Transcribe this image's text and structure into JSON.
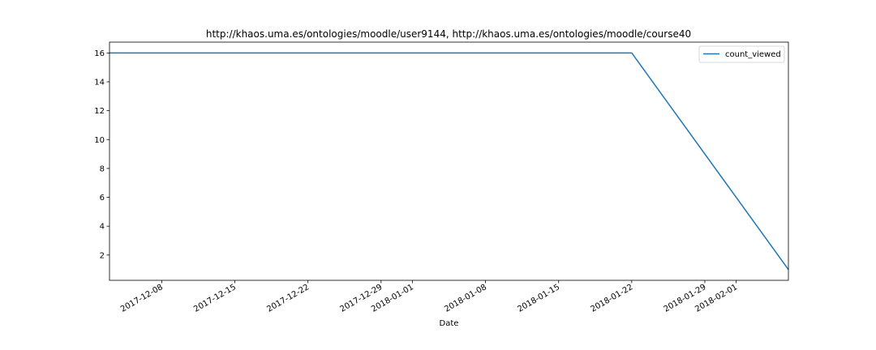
{
  "chart_data": {
    "type": "line",
    "title": "http://khaos.uma.es/ontologies/moodle/user9144, http://khaos.uma.es/ontologies/moodle/course40",
    "xlabel": "Date",
    "ylabel": "",
    "x_type": "date",
    "xlim": [
      "2017-12-03",
      "2018-02-06"
    ],
    "ylim": [
      0.25,
      16.75
    ],
    "x_ticks": [
      "2017-12-08",
      "2017-12-15",
      "2017-12-22",
      "2017-12-29",
      "2018-01-01",
      "2018-01-08",
      "2018-01-15",
      "2018-01-22",
      "2018-01-29",
      "2018-02-01"
    ],
    "y_ticks": [
      2,
      4,
      6,
      8,
      10,
      12,
      14,
      16
    ],
    "grid": false,
    "legend": {
      "position": "top-right"
    },
    "series": [
      {
        "name": "count_viewed",
        "color": "#1f77b4",
        "x": [
          "2017-12-03",
          "2018-01-22",
          "2018-02-06"
        ],
        "y": [
          16,
          16,
          1
        ]
      }
    ]
  }
}
